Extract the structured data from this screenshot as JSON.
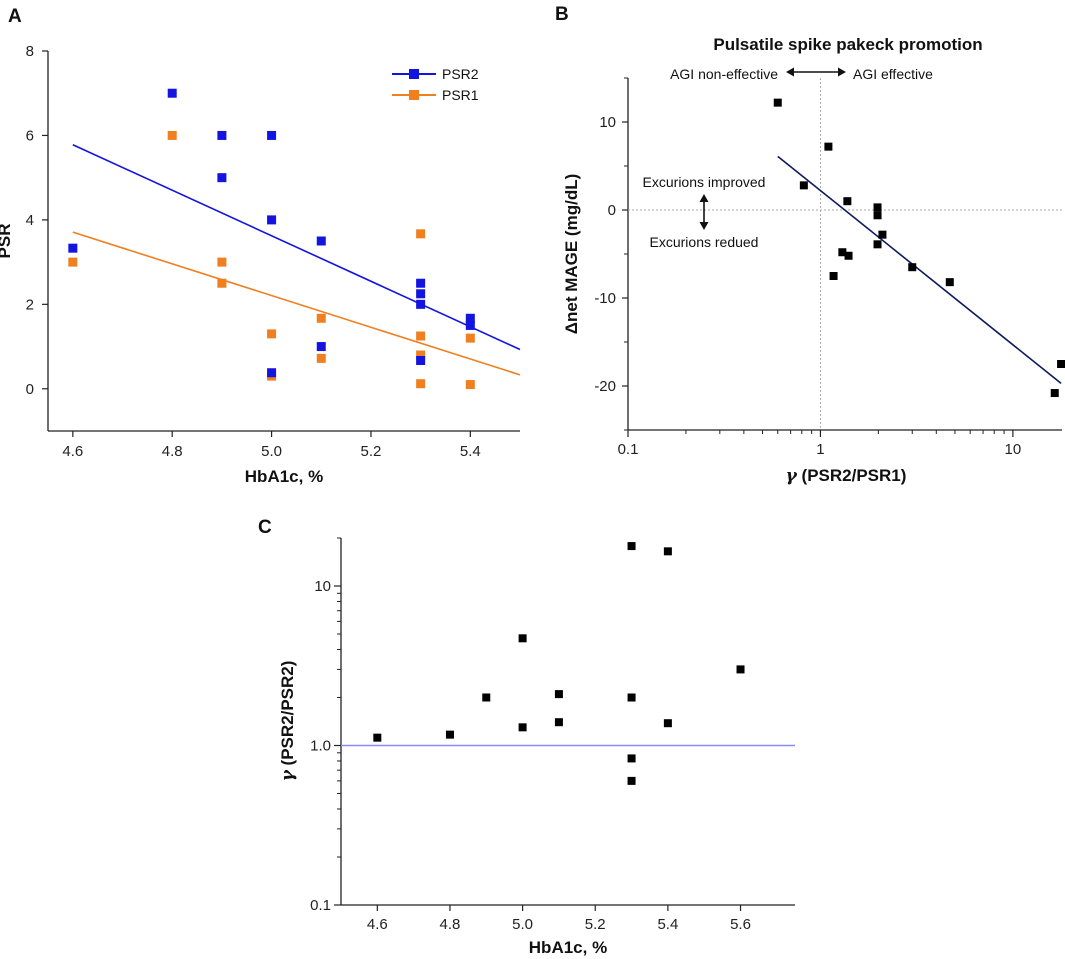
{
  "chart_data": [
    {
      "panel": "A",
      "type": "scatter",
      "xlabel": "HbA1c, %",
      "ylabel": "PSR",
      "xlim": [
        4.55,
        5.5
      ],
      "ylim": [
        -1,
        8
      ],
      "xticks": [
        "4.6",
        "4.8",
        "5.0",
        "5.2",
        "5.4"
      ],
      "yticks": [
        "0",
        "2",
        "4",
        "6",
        "8"
      ],
      "legend": [
        "PSR2",
        "PSR1"
      ],
      "series": [
        {
          "name": "PSR2",
          "color": "#1414e0",
          "points": [
            [
              4.6,
              3.33
            ],
            [
              4.8,
              7.0
            ],
            [
              4.9,
              6.0
            ],
            [
              4.9,
              5.0
            ],
            [
              5.0,
              6.0
            ],
            [
              5.0,
              4.0
            ],
            [
              5.0,
              0.38
            ],
            [
              5.1,
              3.5
            ],
            [
              5.1,
              1.0
            ],
            [
              5.3,
              2.5
            ],
            [
              5.3,
              2.25
            ],
            [
              5.3,
              2.0
            ],
            [
              5.3,
              0.67
            ],
            [
              5.4,
              1.67
            ],
            [
              5.4,
              1.5
            ]
          ],
          "fit": [
            [
              4.6,
              5.78
            ],
            [
              5.5,
              0.93
            ]
          ]
        },
        {
          "name": "PSR1",
          "color": "#f07f20",
          "points": [
            [
              4.6,
              3.0
            ],
            [
              4.8,
              6.0
            ],
            [
              4.9,
              3.0
            ],
            [
              4.9,
              2.5
            ],
            [
              5.0,
              1.3
            ],
            [
              5.0,
              0.3
            ],
            [
              5.1,
              1.67
            ],
            [
              5.1,
              0.72
            ],
            [
              5.3,
              3.67
            ],
            [
              5.3,
              1.25
            ],
            [
              5.3,
              0.8
            ],
            [
              5.3,
              0.12
            ],
            [
              5.4,
              1.2
            ],
            [
              5.4,
              0.1
            ]
          ],
          "fit": [
            [
              4.6,
              3.71
            ],
            [
              5.5,
              0.33
            ]
          ]
        }
      ]
    },
    {
      "panel": "B",
      "type": "scatter",
      "title": "Pulsatile spike pakeck promotion",
      "xlabel": "(PSR2/PSR1)",
      "xlabel_symbol": "γ",
      "ylabel": "Δnet MAGE (mg/dL)",
      "xscale": "log",
      "xlim": [
        0.1,
        18
      ],
      "ylim": [
        -25,
        15
      ],
      "xticks": [
        "0.1",
        "1",
        "10"
      ],
      "yticks": [
        "10",
        "0",
        "-10",
        "-20"
      ],
      "annotations": {
        "left_arrow_text": "AGI non-effective",
        "right_arrow_text": "AGI effective",
        "upper_text": "Excurions improved",
        "lower_text": "Excurions redued"
      },
      "series": [
        {
          "name": "Δnet MAGE",
          "color": "#000000",
          "points": [
            [
              0.6,
              12.2
            ],
            [
              0.82,
              2.8
            ],
            [
              1.1,
              7.2
            ],
            [
              1.17,
              -7.5
            ],
            [
              1.3,
              -4.8
            ],
            [
              1.4,
              -5.2
            ],
            [
              1.38,
              1.0
            ],
            [
              1.98,
              0.3
            ],
            [
              1.98,
              -0.6
            ],
            [
              1.98,
              -3.9
            ],
            [
              2.1,
              -2.8
            ],
            [
              3.0,
              -6.5
            ],
            [
              4.7,
              -8.2
            ],
            [
              16.5,
              -20.8
            ],
            [
              17.8,
              -17.5
            ]
          ],
          "fit": [
            [
              0.6,
              6.1
            ],
            [
              17.8,
              -19.7
            ]
          ]
        }
      ]
    },
    {
      "panel": "C",
      "type": "scatter",
      "xlabel": "HbA1c, %",
      "ylabel": "(PSR2/PSR2)",
      "ylabel_symbol": "γ",
      "yscale": "log",
      "xlim": [
        4.5,
        5.75
      ],
      "ylim": [
        0.1,
        20
      ],
      "xticks": [
        "4.6",
        "4.8",
        "5.0",
        "5.2",
        "5.4",
        "5.6"
      ],
      "yticks": [
        "0.1",
        "1.0",
        "10"
      ],
      "reference_line": 1.0,
      "series": [
        {
          "name": "γ",
          "color": "#000000",
          "points": [
            [
              4.6,
              1.12
            ],
            [
              4.8,
              1.17
            ],
            [
              4.9,
              2.0
            ],
            [
              5.0,
              4.7
            ],
            [
              5.0,
              1.3
            ],
            [
              5.1,
              2.1
            ],
            [
              5.1,
              1.4
            ],
            [
              5.3,
              17.8
            ],
            [
              5.3,
              2.0
            ],
            [
              5.3,
              0.83
            ],
            [
              5.3,
              0.6
            ],
            [
              5.4,
              16.5
            ],
            [
              5.4,
              1.38
            ],
            [
              5.6,
              3.0
            ]
          ]
        }
      ]
    }
  ]
}
